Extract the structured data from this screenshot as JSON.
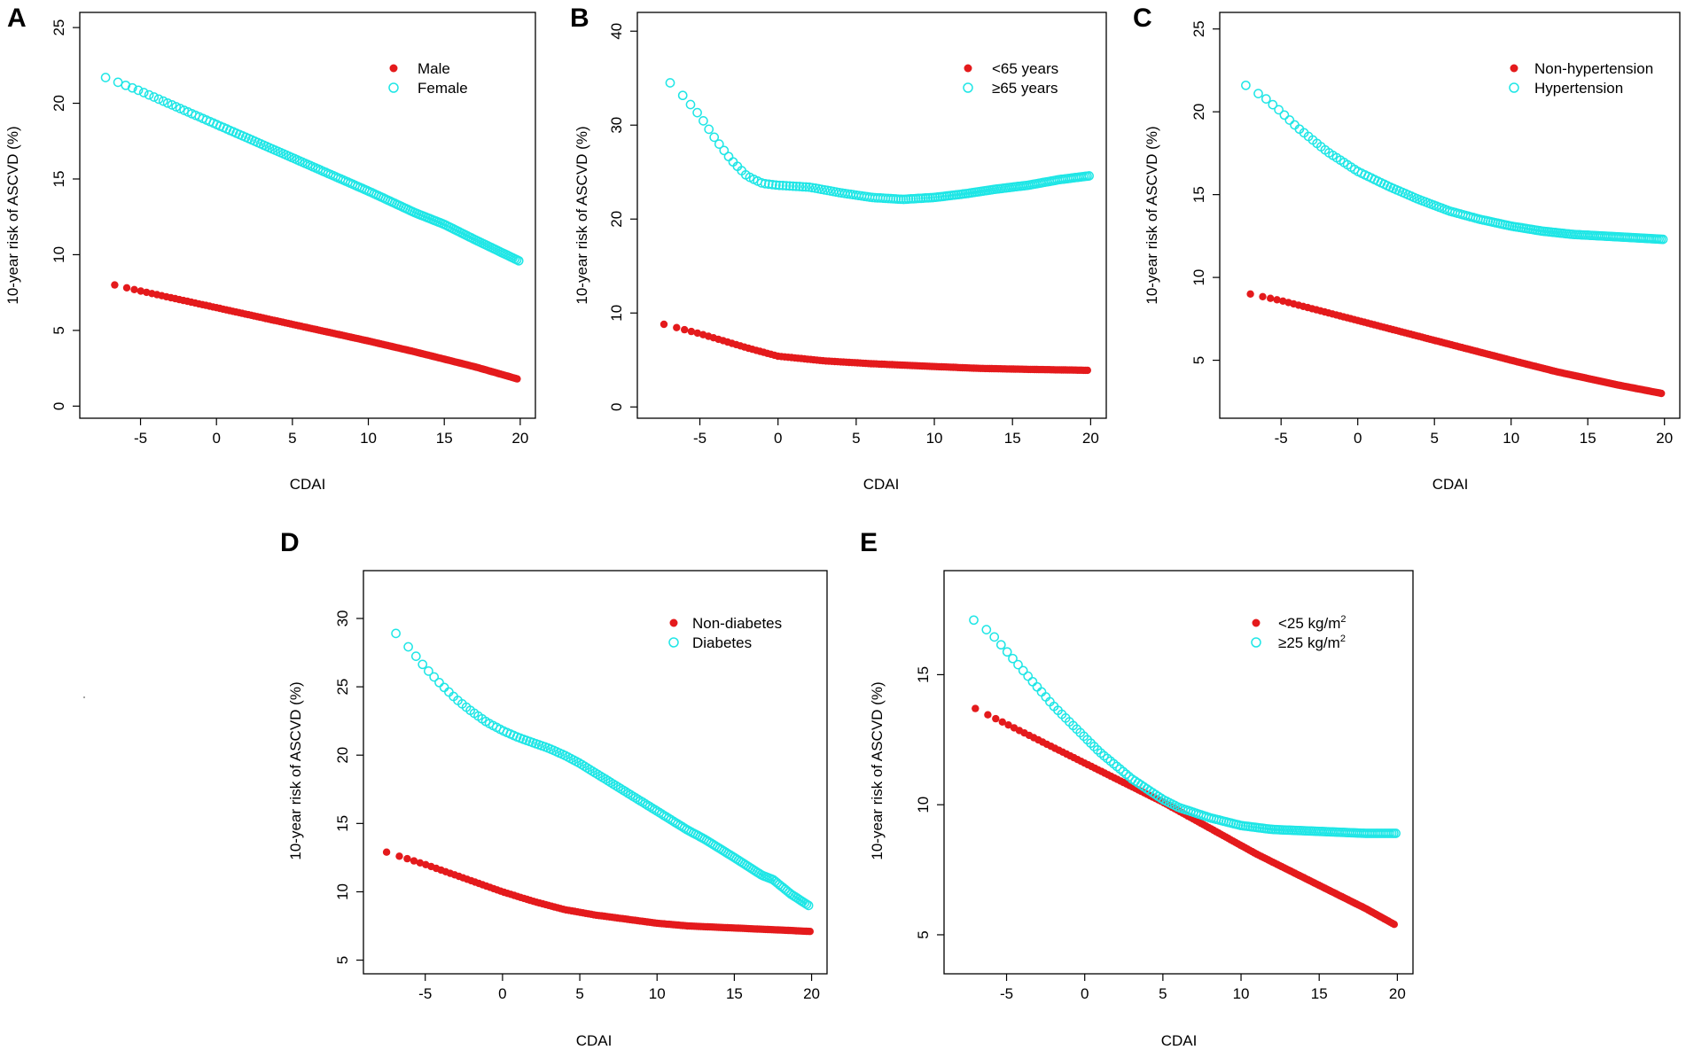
{
  "colors": {
    "series1": "#e41a1c",
    "series2": "#1fe6e6",
    "axis": "#000000"
  },
  "chart_data": [
    {
      "panel": "A",
      "type": "scatter",
      "xlabel": "CDAI",
      "ylabel": "10-year risk of ASCVD (%)",
      "xlim": [
        -9,
        21
      ],
      "ylim": [
        -0.8,
        26
      ],
      "xticks": [
        -5,
        0,
        5,
        10,
        15,
        20
      ],
      "xtick_labels": [
        "-5",
        "0",
        "5",
        "10",
        "15",
        "20"
      ],
      "yticks": [
        0,
        5,
        10,
        15,
        20,
        25
      ],
      "ytick_labels": [
        "0",
        "5",
        "10",
        "15",
        "20",
        "25"
      ],
      "legend_position": "top-right",
      "series": [
        {
          "name": "Male",
          "marker": "filled",
          "x": [
            -6.7,
            -5,
            0,
            5,
            10,
            13,
            15,
            17,
            19.8
          ],
          "y": [
            8.0,
            7.6,
            6.5,
            5.4,
            4.3,
            3.6,
            3.1,
            2.6,
            1.8
          ]
        },
        {
          "name": "Female",
          "marker": "open",
          "x": [
            -7.3,
            -5,
            0,
            5,
            10,
            13,
            15,
            17,
            19.9
          ],
          "y": [
            21.7,
            20.8,
            18.6,
            16.4,
            14.2,
            12.8,
            12.0,
            11.0,
            9.6
          ]
        }
      ]
    },
    {
      "panel": "B",
      "type": "scatter",
      "xlabel": "CDAI",
      "ylabel": "10-year risk of ASCVD (%)",
      "xlim": [
        -9,
        21
      ],
      "ylim": [
        -1.2,
        42
      ],
      "xticks": [
        -5,
        0,
        5,
        10,
        15,
        20
      ],
      "xtick_labels": [
        "-5",
        "0",
        "5",
        "10",
        "15",
        "20"
      ],
      "yticks": [
        0,
        10,
        20,
        30,
        40
      ],
      "ytick_labels": [
        "0",
        "10",
        "20",
        "30",
        "40"
      ],
      "legend_position": "top-right",
      "series": [
        {
          "name": "<65 years",
          "marker": "filled",
          "x": [
            -7.3,
            -5,
            -2,
            0,
            3,
            6,
            10,
            13,
            16,
            19.8
          ],
          "y": [
            8.8,
            7.8,
            6.3,
            5.4,
            4.9,
            4.6,
            4.3,
            4.1,
            4.0,
            3.9
          ]
        },
        {
          "name": "≥65 years",
          "marker": "open",
          "x": [
            -6.9,
            -6,
            -5,
            -4,
            -3,
            -2,
            -1,
            0,
            2,
            4,
            6,
            8,
            10,
            12,
            14,
            16,
            18,
            19.9
          ],
          "y": [
            34.5,
            33.0,
            31.0,
            28.5,
            26.3,
            24.6,
            23.8,
            23.6,
            23.4,
            22.8,
            22.3,
            22.1,
            22.3,
            22.7,
            23.2,
            23.6,
            24.2,
            24.6
          ]
        }
      ]
    },
    {
      "panel": "C",
      "type": "scatter",
      "xlabel": "CDAI",
      "ylabel": "10-year risk of ASCVD (%)",
      "xlim": [
        -9,
        21
      ],
      "ylim": [
        1.5,
        26
      ],
      "xticks": [
        -5,
        0,
        5,
        10,
        15,
        20
      ],
      "xtick_labels": [
        "-5",
        "0",
        "5",
        "10",
        "15",
        "20"
      ],
      "yticks": [
        5,
        10,
        15,
        20,
        25
      ],
      "ytick_labels": [
        "5",
        "10",
        "15",
        "20",
        "25"
      ],
      "legend_position": "top-right",
      "series": [
        {
          "name": "Non-hypertension",
          "marker": "filled",
          "x": [
            -7.0,
            -5,
            0,
            5,
            10,
            13,
            15,
            17,
            19.8
          ],
          "y": [
            9.0,
            8.6,
            7.4,
            6.2,
            5.0,
            4.3,
            3.9,
            3.5,
            3.0
          ]
        },
        {
          "name": "Hypertension",
          "marker": "open",
          "x": [
            -7.3,
            -6,
            -5,
            -4,
            -2,
            0,
            2,
            4,
            6,
            8,
            10,
            12,
            14,
            16,
            18,
            19.9
          ],
          "y": [
            21.6,
            20.8,
            20.0,
            19.1,
            17.6,
            16.4,
            15.5,
            14.7,
            14.0,
            13.5,
            13.1,
            12.8,
            12.6,
            12.5,
            12.4,
            12.3
          ]
        }
      ]
    },
    {
      "panel": "D",
      "type": "scatter",
      "xlabel": "CDAI",
      "ylabel": "10-year risk of ASCVD (%)",
      "xlim": [
        -9,
        21
      ],
      "ylim": [
        4,
        33.5
      ],
      "xticks": [
        -5,
        0,
        5,
        10,
        15,
        20
      ],
      "xtick_labels": [
        "-5",
        "0",
        "5",
        "10",
        "15",
        "20"
      ],
      "yticks": [
        5,
        10,
        15,
        20,
        25,
        30
      ],
      "ytick_labels": [
        "5",
        "10",
        "15",
        "20",
        "25",
        "30"
      ],
      "legend_position": "top-right",
      "series": [
        {
          "name": "Non-diabetes",
          "marker": "filled",
          "x": [
            -7.5,
            -5,
            -2,
            0,
            2,
            4,
            6,
            8,
            10,
            12,
            14,
            16,
            18,
            19.9
          ],
          "y": [
            12.9,
            12.0,
            10.8,
            10.0,
            9.3,
            8.7,
            8.3,
            8.0,
            7.7,
            7.5,
            7.4,
            7.3,
            7.2,
            7.1
          ]
        },
        {
          "name": "Diabetes",
          "marker": "open",
          "x": [
            -6.9,
            -6,
            -5,
            -4,
            -3,
            -2,
            -1,
            0,
            1,
            2,
            3,
            4,
            5,
            6,
            7,
            8,
            9,
            10,
            11,
            12,
            13,
            14,
            15,
            16.8,
            17.5,
            18.7,
            19.8
          ],
          "y": [
            28.9,
            27.8,
            26.4,
            25.2,
            24.1,
            23.2,
            22.4,
            21.8,
            21.3,
            20.9,
            20.5,
            20.0,
            19.4,
            18.7,
            18.0,
            17.3,
            16.6,
            15.9,
            15.2,
            14.5,
            13.9,
            13.2,
            12.5,
            11.2,
            10.9,
            9.8,
            9.0
          ]
        }
      ]
    },
    {
      "panel": "E",
      "type": "scatter",
      "xlabel": "CDAI",
      "ylabel": "10-year risk of ASCVD (%)",
      "xlim": [
        -9,
        21
      ],
      "ylim": [
        3.5,
        19
      ],
      "xticks": [
        -5,
        0,
        5,
        10,
        15,
        20
      ],
      "xtick_labels": [
        "-5",
        "0",
        "5",
        "10",
        "15",
        "20"
      ],
      "yticks": [
        5,
        10,
        15
      ],
      "ytick_labels": [
        "5",
        "10",
        "15"
      ],
      "legend_position": "top-right",
      "series": [
        {
          "name": "<25 kg/m2",
          "legend_base": "<25 kg/m",
          "legend_sup": "2",
          "marker": "filled",
          "x": [
            -7.0,
            -5,
            -2,
            0,
            2,
            5,
            8,
            11,
            13,
            15,
            17,
            18,
            19.8
          ],
          "y": [
            13.7,
            13.1,
            12.2,
            11.6,
            11.0,
            10.1,
            9.1,
            8.1,
            7.5,
            6.9,
            6.3,
            6.0,
            5.4
          ]
        },
        {
          "name": "≥25 kg/m2",
          "legend_base": "≥25 kg/m",
          "legend_sup": "2",
          "marker": "open",
          "x": [
            -7.1,
            -6,
            -5,
            -4,
            -3,
            -2,
            -1,
            0,
            1,
            2,
            3,
            4,
            5,
            6,
            7,
            8,
            10,
            12,
            14,
            16,
            18,
            19.9
          ],
          "y": [
            17.1,
            16.6,
            15.9,
            15.2,
            14.5,
            13.8,
            13.2,
            12.6,
            12.0,
            11.5,
            11.0,
            10.6,
            10.2,
            9.9,
            9.7,
            9.5,
            9.2,
            9.05,
            9.0,
            8.95,
            8.9,
            8.9
          ]
        }
      ]
    }
  ]
}
